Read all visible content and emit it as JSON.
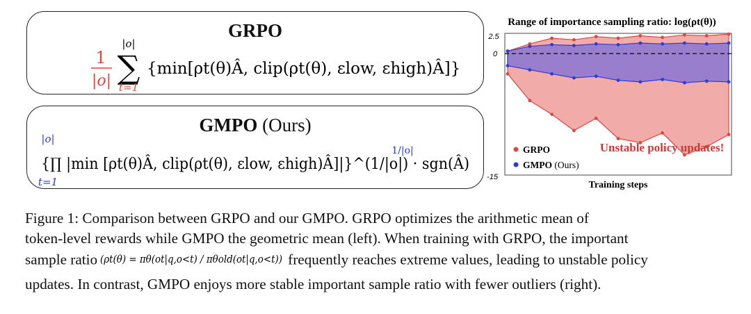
{
  "grpo_box": {
    "title": "GRPO",
    "coef_num": "1",
    "coef_den": "|o|",
    "sum_upper": "|o|",
    "sum_lower": "t=1",
    "body": "{min[ρt(θ)Â, clip(ρt(θ), εlow, εhigh)Â]}"
  },
  "gmpo_box": {
    "title_bold": "GMPO",
    "title_rest": "(Ours)",
    "prod_upper": "|o|",
    "prod_lower": "t=1",
    "exponent": "1/|o|",
    "body": "{∏ |min [ρt(θ)Â, clip(ρt(θ), εlow, εhigh)Â]|}^(1/|o|) · sgn(Â)"
  },
  "chart_data": {
    "type": "area",
    "title": "Range of importance sampling ratio: log(ρt(θ))",
    "xlabel": "Training steps",
    "ylabel": "",
    "y_ticks": [
      "2.5",
      "0",
      "-15"
    ],
    "ylim": [
      -15,
      2.5
    ],
    "reference_line": 0,
    "annotation": "Unstable policy updates!",
    "legend_placement": "bottom-left",
    "series": [
      {
        "name": "GRPO",
        "name_suffix": "",
        "color": "#e0453e",
        "upper_band": [
          0.3,
          1.2,
          1.9,
          1.7,
          2.1,
          1.9,
          2.2,
          2.0,
          2.3,
          2.2,
          2.4
        ],
        "lower_band": [
          -2.5,
          -5.8,
          -7.5,
          -9.5,
          -8.0,
          -10.5,
          -11.0,
          -9.8,
          -12.5,
          -11.5,
          -10.0
        ]
      },
      {
        "name": "GMPO",
        "name_suffix": "(Ours)",
        "color": "#2a3bd9",
        "upper_band": [
          0.3,
          0.9,
          1.1,
          1.0,
          1.2,
          1.1,
          1.3,
          1.2,
          1.3,
          1.2,
          1.3
        ],
        "lower_band": [
          -1.5,
          -2.0,
          -2.5,
          -3.0,
          -2.8,
          -3.3,
          -3.5,
          -3.2,
          -3.6,
          -3.4,
          -3.5
        ]
      }
    ]
  },
  "caption": {
    "line1": "Figure 1: Comparison between GRPO and our GMPO. GRPO optimizes the arithmetic mean of",
    "line2": "token-level rewards while GMPO the geometric mean (left). When training with GRPO, the important",
    "line3_a": "sample ratio",
    "line3_formula": "(ρt(θ) = πθ(ot|q,o<t) / πθold(ot|q,o<t))",
    "line3_b": "frequently reaches extreme values, leading to unstable policy",
    "line4": "updates. In contrast, GMPO enjoys more stable important sample ratio with fewer outliers (right)."
  }
}
